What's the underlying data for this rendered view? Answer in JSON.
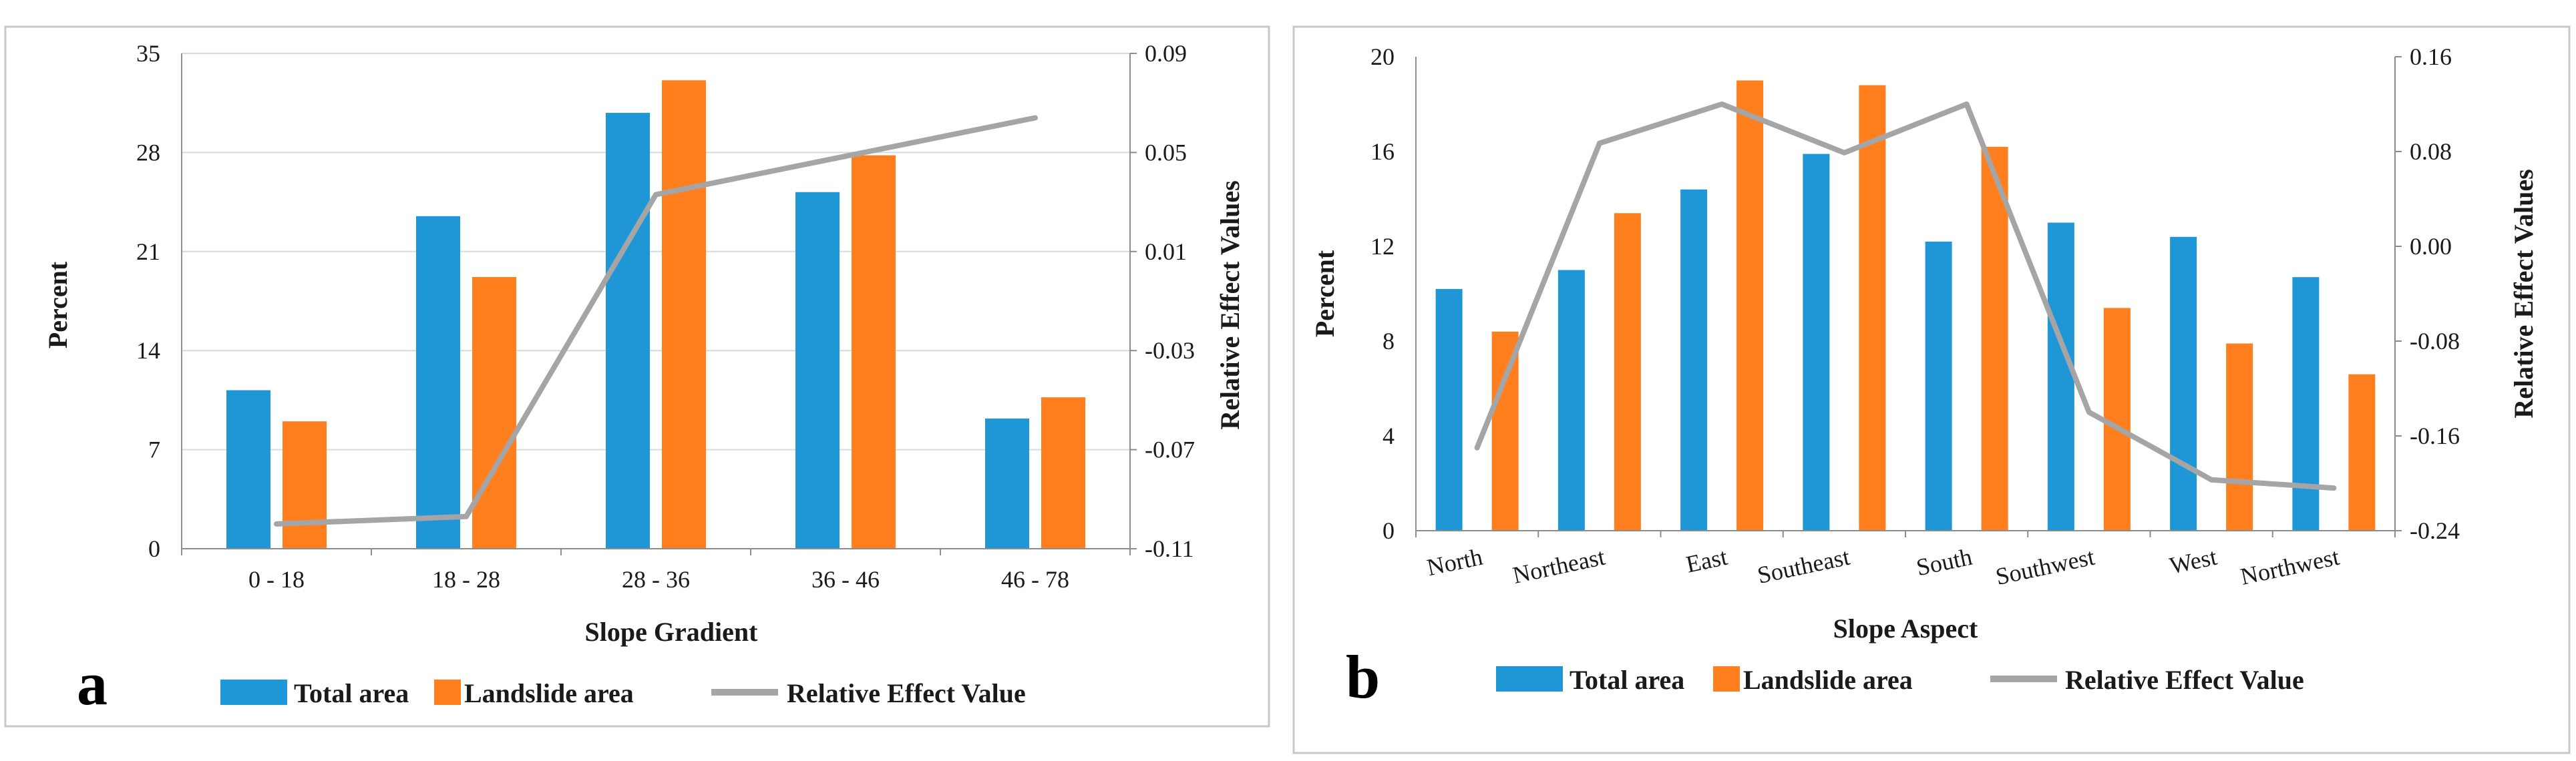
{
  "colors": {
    "total": "#1f97d6",
    "landslide": "#ff7f1e",
    "line": "#a5a5a5",
    "grid": "#d9d9d9",
    "frame": "#c8c8c8"
  },
  "chart_data": [
    {
      "type": "bar",
      "panel_label": "a",
      "categories": [
        "0 - 18",
        "18 - 28",
        "28 - 36",
        "36 - 46",
        "46 - 78"
      ],
      "series": [
        {
          "name": "Total area",
          "kind": "bar",
          "axis": "left",
          "values": [
            11.2,
            23.5,
            30.8,
            25.2,
            9.2
          ]
        },
        {
          "name": "Landslide area",
          "kind": "bar",
          "axis": "left",
          "values": [
            9.0,
            19.2,
            33.1,
            27.8,
            10.7
          ]
        },
        {
          "name": "Relative Effect Value",
          "kind": "line",
          "axis": "right",
          "values": [
            -0.1,
            -0.097,
            0.033,
            null,
            0.064
          ]
        }
      ],
      "xlabel": "Slope Gradient",
      "ylabel": "Percent",
      "y2label": "Relative Effect Values",
      "ylim": [
        0,
        35
      ],
      "y2lim": [
        -0.11,
        0.09
      ],
      "yticks": [
        "0",
        "7",
        "14",
        "21",
        "28",
        "35"
      ],
      "y2ticks": [
        "-0.11",
        "-0.07",
        "-0.03",
        "0.01",
        "0.05",
        "0.09"
      ],
      "grid": true,
      "legend": "bottom"
    },
    {
      "type": "bar",
      "panel_label": "b",
      "categories": [
        "North",
        "Northeast",
        "East",
        "Southeast",
        "South",
        "Southwest",
        "West",
        "Northwest"
      ],
      "series": [
        {
          "name": "Total area",
          "kind": "bar",
          "axis": "left",
          "values": [
            10.2,
            11.0,
            14.4,
            15.9,
            12.2,
            13.0,
            12.4,
            10.7
          ]
        },
        {
          "name": "Landslide area",
          "kind": "bar",
          "axis": "left",
          "values": [
            8.4,
            13.4,
            19.0,
            18.8,
            16.2,
            9.4,
            7.9,
            6.6
          ]
        },
        {
          "name": "Relative Effect Value",
          "kind": "line",
          "axis": "right",
          "values": [
            -0.17,
            0.087,
            0.12,
            0.079,
            0.12,
            -0.14,
            -0.197,
            -0.204
          ]
        }
      ],
      "xlabel": "Slope Aspect",
      "ylabel": "Percent",
      "y2label": "Relative Effect Values",
      "ylim": [
        0,
        20
      ],
      "y2lim": [
        -0.24,
        0.16
      ],
      "yticks": [
        "0",
        "4",
        "8",
        "12",
        "16",
        "20"
      ],
      "y2ticks": [
        "-0.24",
        "-0.16",
        "-0.08",
        "0.00",
        "0.08",
        "0.16"
      ],
      "grid": false,
      "legend": "bottom"
    }
  ]
}
